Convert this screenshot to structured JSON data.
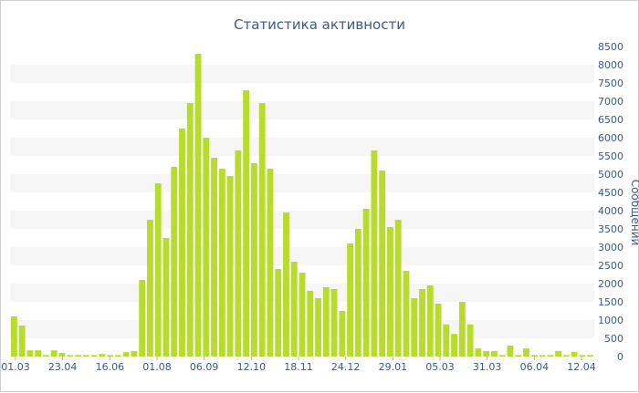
{
  "chart_data": {
    "type": "bar",
    "title": "Статистика активности",
    "ylabel": "Сообщений",
    "xlabel": "",
    "ylim": [
      0,
      8500
    ],
    "y_ticks": [
      0,
      500,
      1000,
      1500,
      2000,
      2500,
      3000,
      3500,
      4000,
      4500,
      5000,
      5500,
      6000,
      6500,
      7000,
      7500,
      8000,
      8500
    ],
    "y_axis_side": "right",
    "grid": "alternating horizontal bands",
    "x_tick_labels": [
      "01.03",
      "23.04",
      "16.06",
      "01.08",
      "06.09",
      "12.10",
      "18.11",
      "24.12",
      "29.01",
      "05.03",
      "31.03",
      "06.04",
      "12.04"
    ],
    "bar_color": "#b8dc2c",
    "values": [
      1100,
      850,
      170,
      170,
      40,
      170,
      100,
      40,
      40,
      40,
      40,
      70,
      40,
      40,
      120,
      150,
      2100,
      3750,
      4750,
      3250,
      5200,
      6250,
      6950,
      8300,
      6000,
      5450,
      5150,
      4950,
      5650,
      7300,
      5300,
      6950,
      5150,
      2400,
      3950,
      2600,
      2300,
      1800,
      1600,
      1900,
      1850,
      1250,
      3100,
      3500,
      4050,
      5650,
      5100,
      3550,
      3750,
      2350,
      1600,
      1850,
      1950,
      1450,
      880,
      620,
      1500,
      880,
      220,
      150,
      150,
      40,
      300,
      40,
      220,
      40,
      40,
      40,
      150,
      40,
      130,
      40,
      40
    ]
  }
}
